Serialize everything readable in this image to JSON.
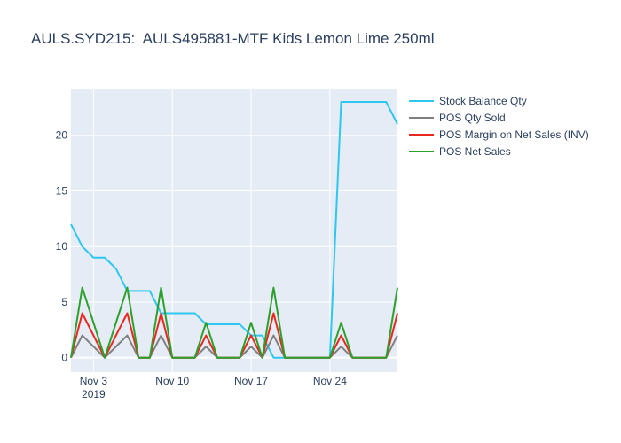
{
  "title": "AULS.SYD215:  AULS495881-MTF Kids Lemon Lime 250ml",
  "chart_data": {
    "type": "line",
    "title": "AULS.SYD215:  AULS495881-MTF Kids Lemon Lime 250ml",
    "xlabel": "",
    "ylabel": "",
    "x": [
      "2019-11-01",
      "2019-11-02",
      "2019-11-03",
      "2019-11-04",
      "2019-11-05",
      "2019-11-06",
      "2019-11-07",
      "2019-11-08",
      "2019-11-09",
      "2019-11-10",
      "2019-11-11",
      "2019-11-12",
      "2019-11-13",
      "2019-11-14",
      "2019-11-15",
      "2019-11-16",
      "2019-11-17",
      "2019-11-18",
      "2019-11-19",
      "2019-11-20",
      "2019-11-21",
      "2019-11-22",
      "2019-11-23",
      "2019-11-24",
      "2019-11-25",
      "2019-11-26",
      "2019-11-27",
      "2019-11-28",
      "2019-11-29",
      "2019-11-30"
    ],
    "x_ticks": [
      {
        "date": "2019-11-03",
        "label": "Nov 3",
        "sublabel": "2019"
      },
      {
        "date": "2019-11-10",
        "label": "Nov 10",
        "sublabel": ""
      },
      {
        "date": "2019-11-17",
        "label": "Nov 17",
        "sublabel": ""
      },
      {
        "date": "2019-11-24",
        "label": "Nov 24",
        "sublabel": ""
      }
    ],
    "y_ticks": [
      0,
      5,
      10,
      15,
      20
    ],
    "xlim": [
      "2019-11-01",
      "2019-11-30"
    ],
    "ylim": [
      -1.3,
      24.2
    ],
    "grid": true,
    "legend_position": "right",
    "series": [
      {
        "name": "Stock Balance Qty",
        "color": "#2ec7f0",
        "values": [
          12,
          10,
          9,
          9,
          8,
          6,
          6,
          6,
          4,
          4,
          4,
          4,
          3,
          3,
          3,
          3,
          2,
          2,
          0,
          0,
          0,
          0,
          0,
          0,
          23,
          23,
          23,
          23,
          23,
          21
        ]
      },
      {
        "name": "POS Qty Sold",
        "color": "#808080",
        "values": [
          0,
          2,
          1,
          0,
          1,
          2,
          0,
          0,
          2,
          0,
          0,
          0,
          1,
          0,
          0,
          0,
          1,
          0,
          2,
          0,
          0,
          0,
          0,
          0,
          1,
          0,
          0,
          0,
          0,
          2
        ]
      },
      {
        "name": "POS Margin on Net Sales (INV)",
        "color": "#e8281e",
        "values": [
          0,
          4,
          2,
          0,
          2,
          4,
          0,
          0,
          4,
          0,
          0,
          0,
          2,
          0,
          0,
          0,
          2,
          0,
          4,
          0,
          0,
          0,
          0,
          0,
          2,
          0,
          0,
          0,
          0,
          4
        ]
      },
      {
        "name": "POS Net Sales",
        "color": "#2ca02c",
        "values": [
          0,
          6.3,
          3.15,
          0,
          3.15,
          6.3,
          0,
          0,
          6.3,
          0,
          0,
          0,
          3.15,
          0,
          0,
          0,
          3.15,
          0,
          6.3,
          0,
          0,
          0,
          0,
          0,
          3.15,
          0,
          0,
          0,
          0,
          6.3
        ]
      }
    ]
  }
}
